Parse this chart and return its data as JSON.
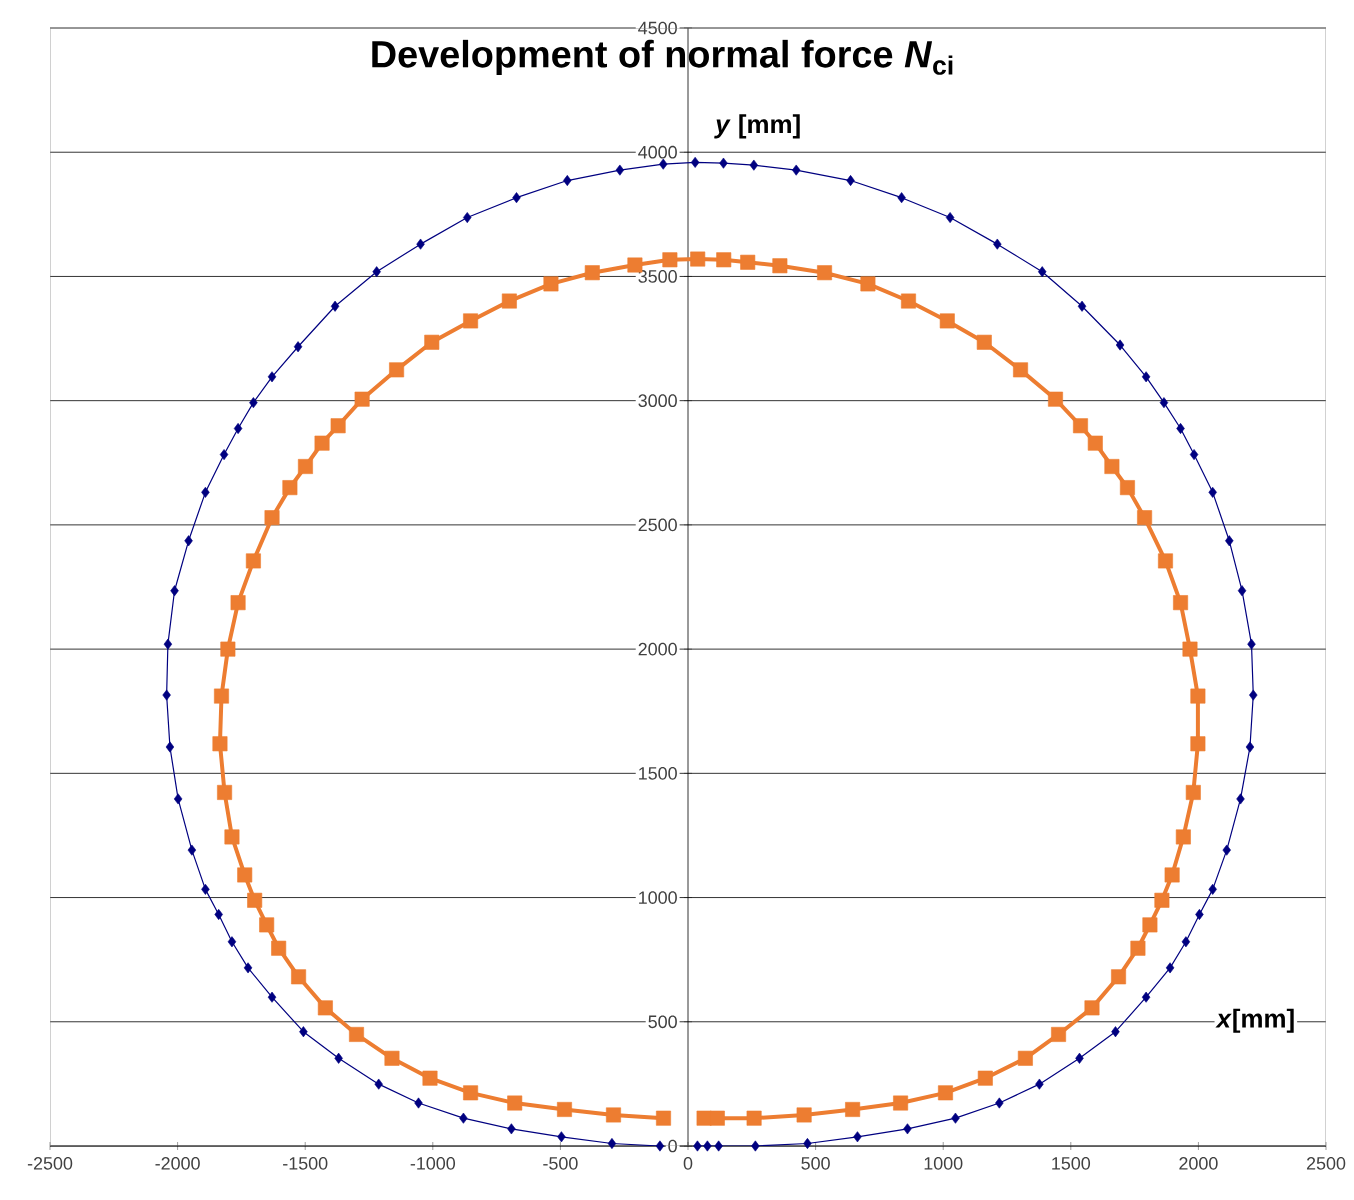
{
  "chart_data": {
    "type": "line",
    "title": "Development of normal force *N*$_{ci}$",
    "xlabel": "*x*[mm]",
    "ylabel": "*y* [mm]",
    "xlim": [
      -2500,
      2500
    ],
    "ylim": [
      0,
      4500
    ],
    "xticks": [
      -2500,
      -2000,
      -1500,
      -1000,
      -500,
      0,
      500,
      1000,
      1500,
      2000,
      2500
    ],
    "yticks": [
      0,
      500,
      1000,
      1500,
      2000,
      2500,
      3000,
      3500,
      4000,
      4500
    ],
    "grid": "y",
    "line_style": "solid",
    "series": [
      {
        "color": "#000080",
        "marker": "diamond",
        "x": [
          37,
          76,
          120,
          264,
          468,
          664,
          860,
          1048,
          1220,
          1377,
          1534,
          1675,
          1795,
          1889,
          1951,
          2004,
          2056,
          2111,
          2165,
          2202,
          2215,
          2208,
          2171,
          2121,
          2056,
          1983,
          1930,
          1865,
          1795,
          1693,
          1544,
          1388,
          1212,
          1027,
          837,
          637,
          424,
          258,
          139,
          28,
          -97,
          -267,
          -473,
          -672,
          -865,
          -1048,
          -1220,
          -1383,
          -1528,
          -1630,
          -1703,
          -1763,
          -1818,
          -1891,
          -1957,
          -2012,
          -2038,
          -2043,
          -2030,
          -1998,
          -1944,
          -1891,
          -1839,
          -1787,
          -1724,
          -1630,
          -1507,
          -1369,
          -1212,
          -1056,
          -880,
          -692,
          -496,
          -298,
          -110
        ],
        "values": [
          0,
          0,
          0,
          0,
          10,
          37,
          69,
          112,
          173,
          249,
          353,
          460,
          599,
          717,
          822,
          932,
          1033,
          1191,
          1397,
          1606,
          1815,
          2020,
          2235,
          2436,
          2631,
          2783,
          2888,
          2992,
          3096,
          3224,
          3380,
          3519,
          3630,
          3737,
          3817,
          3886,
          3928,
          3948,
          3956,
          3959,
          3952,
          3928,
          3886,
          3817,
          3737,
          3630,
          3519,
          3380,
          3217,
          3096,
          2992,
          2888,
          2783,
          2631,
          2436,
          2235,
          2020,
          1815,
          1606,
          1397,
          1191,
          1033,
          932,
          822,
          717,
          599,
          460,
          353,
          249,
          173,
          112,
          69,
          37,
          10,
          0
        ]
      },
      {
        "color": "#ed7d31",
        "marker": "square",
        "x": [
          63,
          115,
          259,
          455,
          645,
          833,
          1009,
          1165,
          1322,
          1452,
          1583,
          1687,
          1763,
          1810,
          1857,
          1897,
          1941,
          1980,
          1998,
          1998,
          1967,
          1930,
          1871,
          1789,
          1722,
          1661,
          1596,
          1538,
          1440,
          1303,
          1161,
          1016,
          864,
          705,
          535,
          360,
          234,
          140,
          38,
          -71,
          -208,
          -375,
          -537,
          -700,
          -852,
          -1004,
          -1142,
          -1277,
          -1371,
          -1434,
          -1499,
          -1560,
          -1630,
          -1703,
          -1763,
          -1803,
          -1828,
          -1834,
          -1816,
          -1787,
          -1737,
          -1698,
          -1651,
          -1604,
          -1526,
          -1421,
          -1299,
          -1160,
          -1011,
          -852,
          -679,
          -484,
          -292,
          -96
        ],
        "values": [
          112,
          112,
          112,
          125,
          147,
          173,
          214,
          273,
          353,
          449,
          556,
          681,
          796,
          890,
          989,
          1091,
          1244,
          1423,
          1619,
          1811,
          2000,
          2187,
          2355,
          2529,
          2650,
          2735,
          2829,
          2899,
          3006,
          3124,
          3235,
          3321,
          3401,
          3470,
          3515,
          3543,
          3557,
          3567,
          3570,
          3567,
          3546,
          3515,
          3470,
          3401,
          3321,
          3235,
          3124,
          3006,
          2899,
          2829,
          2735,
          2650,
          2529,
          2355,
          2187,
          2000,
          1811,
          1619,
          1423,
          1244,
          1091,
          989,
          890,
          796,
          681,
          556,
          449,
          353,
          273,
          214,
          173,
          147,
          125,
          112
        ]
      }
    ]
  }
}
